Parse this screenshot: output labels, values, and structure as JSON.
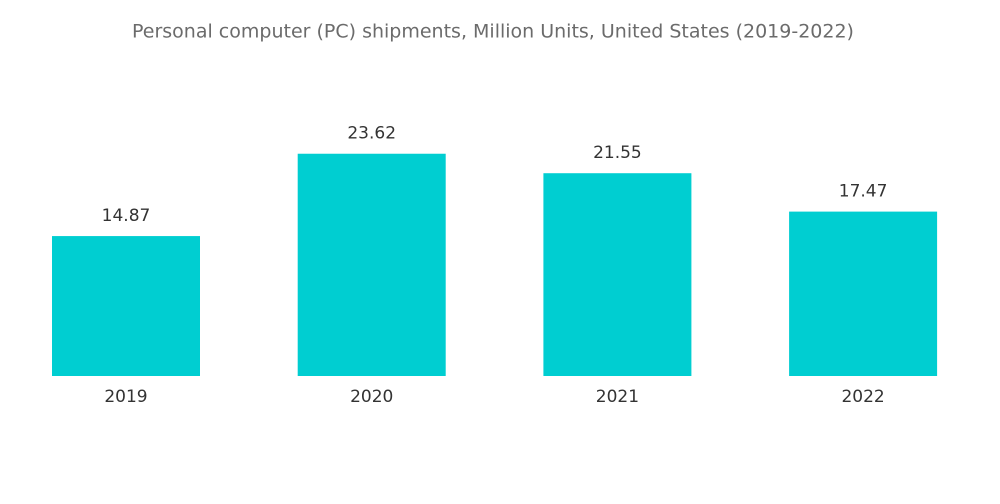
{
  "chart_data": {
    "type": "bar",
    "title": "Personal computer (PC) shipments, Million Units, United States (2019-2022)",
    "categories": [
      "2019",
      "2020",
      "2021",
      "2022"
    ],
    "values": [
      14.87,
      23.62,
      21.55,
      17.47
    ],
    "color": "#00ced1"
  }
}
